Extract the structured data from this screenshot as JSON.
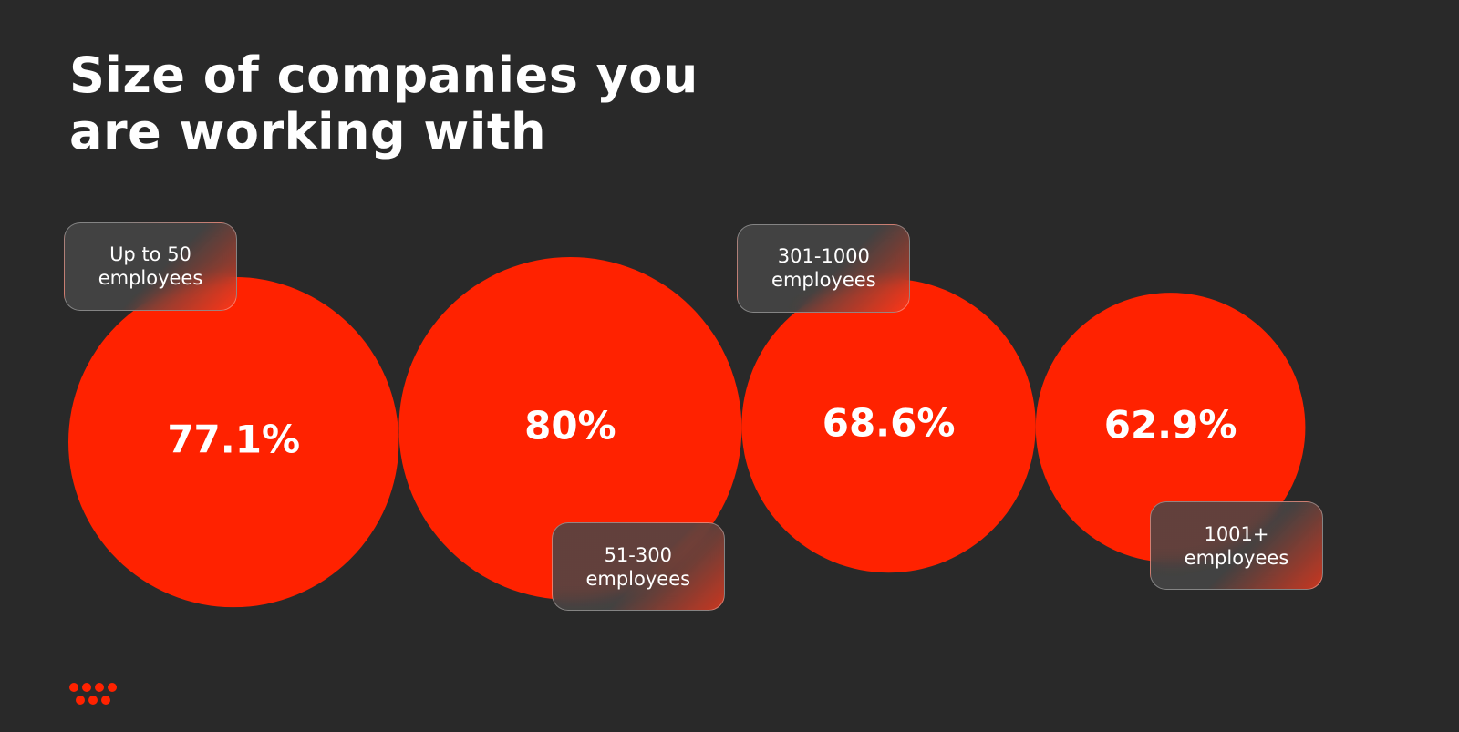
{
  "chart_data": {
    "type": "bubble",
    "title": "Size of companies you are working with",
    "categories": [
      "Up to 50 employees",
      "51-300 employees",
      "301-1000 employees",
      "1001+ employees"
    ],
    "values": [
      77.1,
      80,
      68.6,
      62.9
    ],
    "value_labels": [
      "77.1%",
      "80%",
      "68.6%",
      "62.9%"
    ],
    "color": "#ff2200"
  }
}
